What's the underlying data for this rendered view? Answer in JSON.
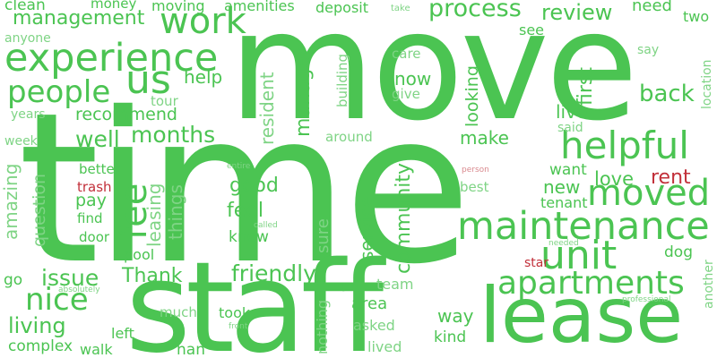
{
  "palette": {
    "background": "#ffffff",
    "green": "#4bc452",
    "green_light": "#7fd485",
    "red": "#c2303a",
    "red_light": "#d98a8f"
  },
  "words": {
    "move": "move",
    "time": "time",
    "staff": "staff",
    "lease": "lease",
    "experience": "experience",
    "work": "work",
    "people": "people",
    "us": "us",
    "helpful": "helpful",
    "maintenance": "maintenance",
    "moved": "moved",
    "unit": "unit",
    "apartments": "apartments",
    "fee": "fee",
    "nice": "nice",
    "management": "management",
    "process": "process",
    "review": "review",
    "clean": "clean",
    "money": "money",
    "moving": "moving",
    "amenities": "amenities",
    "deposit": "deposit",
    "take": "take",
    "need": "need",
    "two": "two",
    "anyone": "anyone",
    "see": "see",
    "care": "care",
    "say": "say",
    "location": "location",
    "help": "help",
    "now": "now",
    "give": "give",
    "building": "building",
    "resident": "resident",
    "manager": "manager",
    "tour": "tour",
    "years": "years",
    "recommend": "recommend",
    "looking": "looking",
    "first": "first",
    "back": "back",
    "live": "live",
    "said": "said",
    "week": "week",
    "well": "well",
    "months": "months",
    "around": "around",
    "make": "make",
    "amazing": "amazing",
    "question": "question",
    "leasing": "leasing",
    "things": "things",
    "good": "good",
    "feel": "feel",
    "know": "know",
    "sure": "sure",
    "service": "service",
    "community": "community",
    "new": "new",
    "want": "want",
    "love": "love",
    "rent": "rent",
    "tenant": "tenant",
    "best": "best",
    "person": "person",
    "better": "better",
    "entire": "entire",
    "trash": "trash",
    "pay": "pay",
    "find": "find",
    "door": "door",
    "called": "called",
    "pool": "pool",
    "needed": "needed",
    "dog": "dog",
    "star": "star",
    "friendly": "friendly",
    "issue": "issue",
    "go": "go",
    "absolutely": "absolutely",
    "Thank": "Thank",
    "team": "team",
    "area": "area",
    "way": "way",
    "professional": "professional",
    "another": "another",
    "much": "much",
    "took": "took",
    "living": "living",
    "left": "left",
    "front": "front",
    "nothing": "nothing",
    "asked": "asked",
    "kind": "kind",
    "complex": "complex",
    "walk": "walk",
    "nan": "nan",
    "lived": "lived"
  }
}
